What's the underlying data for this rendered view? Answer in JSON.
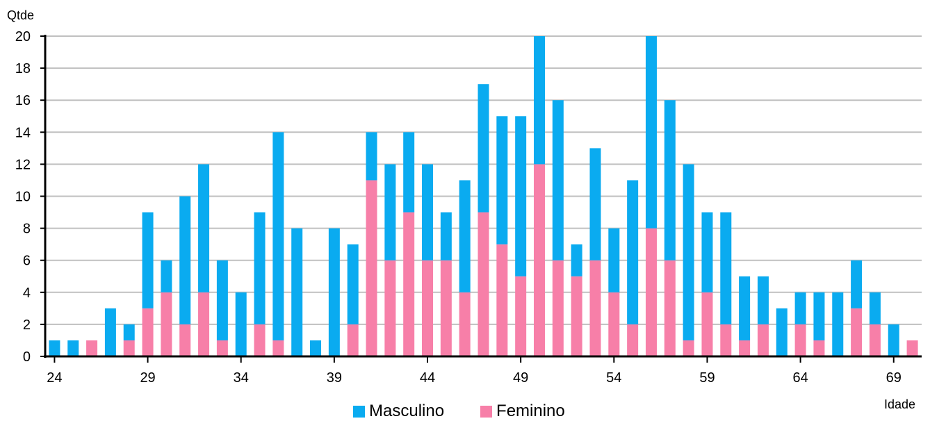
{
  "chart_data": {
    "type": "bar",
    "stacked": true,
    "ylabel": "Qtde",
    "xlabel": "Idade",
    "ylim": [
      0,
      20
    ],
    "yticks": [
      0,
      2,
      4,
      6,
      8,
      10,
      12,
      14,
      16,
      18,
      20
    ],
    "xtick_labels": [
      "24",
      "29",
      "34",
      "39",
      "44",
      "49",
      "54",
      "59",
      "64",
      "69"
    ],
    "grid": "horizontal",
    "legend_position": "bottom",
    "categories": [
      24,
      25,
      26,
      27,
      28,
      29,
      30,
      31,
      32,
      33,
      34,
      35,
      36,
      37,
      38,
      39,
      40,
      41,
      42,
      43,
      44,
      45,
      46,
      47,
      48,
      49,
      50,
      51,
      52,
      53,
      54,
      55,
      56,
      57,
      58,
      59,
      60,
      61,
      62,
      63,
      64,
      65,
      66,
      67,
      68,
      69,
      70
    ],
    "series": [
      {
        "name": "Feminino",
        "color": "#f77fa8",
        "values": [
          0,
          0,
          1,
          0,
          1,
          3,
          4,
          2,
          4,
          1,
          0,
          2,
          1,
          0,
          0,
          0,
          2,
          11,
          6,
          9,
          6,
          6,
          4,
          9,
          7,
          5,
          12,
          6,
          5,
          6,
          4,
          2,
          8,
          6,
          1,
          4,
          2,
          1,
          2,
          0,
          2,
          1,
          0,
          3,
          2,
          0,
          1
        ]
      },
      {
        "name": "Masculino",
        "color": "#0aabf0",
        "values": [
          1,
          1,
          0,
          3,
          1,
          6,
          2,
          8,
          8,
          5,
          4,
          7,
          13,
          8,
          1,
          8,
          5,
          3,
          6,
          5,
          6,
          3,
          7,
          8,
          8,
          10,
          8,
          10,
          2,
          7,
          4,
          9,
          12,
          10,
          11,
          5,
          7,
          4,
          3,
          3,
          2,
          3,
          4,
          3,
          2,
          2,
          0
        ]
      }
    ],
    "legend": [
      "Masculino",
      "Feminino"
    ]
  }
}
